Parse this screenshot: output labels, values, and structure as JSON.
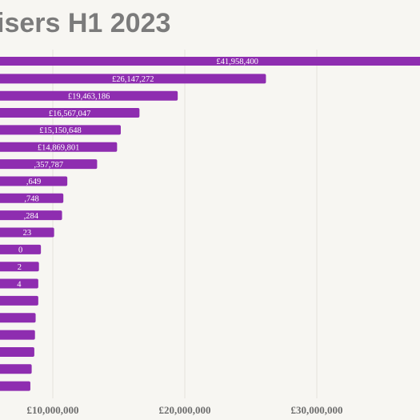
{
  "chart_data": {
    "type": "bar",
    "orientation": "horizontal",
    "title": "isers H1 2023",
    "bar_color": "#8e2db0",
    "background": "#f7f6f2",
    "grid": true,
    "x_ticks": [
      {
        "value": 10000000,
        "label": "£10,000,000"
      },
      {
        "value": 20000000,
        "label": "£20,000,000"
      },
      {
        "value": 30000000,
        "label": "£30,000,000"
      }
    ],
    "series": [
      {
        "values": [
          41958400,
          26147272,
          19463186,
          16567047,
          15150648,
          14869801,
          13357787,
          11100000,
          10800000,
          10700000,
          10100000,
          9100000,
          8950000,
          8900000,
          8900000,
          8700000,
          8650000,
          8600000,
          8400000,
          8300000
        ],
        "labels": [
          "£41,958,400",
          "£26,147,272",
          "£19,463,186",
          "£16,567,047",
          "£15,150,648",
          "£14,869,801",
          ",357,787",
          ",649",
          ",748",
          ",284",
          "23",
          "0",
          "2",
          "4",
          "",
          "",
          "",
          "",
          "",
          ""
        ]
      }
    ]
  }
}
